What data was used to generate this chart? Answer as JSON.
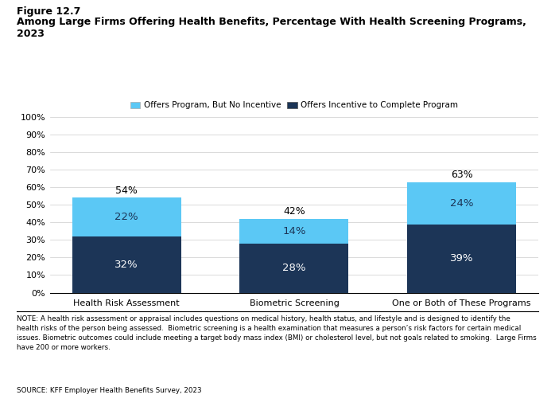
{
  "figure_label": "Figure 12.7",
  "title_line1": "Among Large Firms Offering Health Benefits, Percentage With Health Screening Programs,",
  "title_line2": "2023",
  "categories": [
    "Health Risk Assessment",
    "Biometric Screening",
    "One or Both of These Programs"
  ],
  "incentive_values": [
    32,
    28,
    39
  ],
  "no_incentive_values": [
    22,
    14,
    24
  ],
  "totals": [
    54,
    42,
    63
  ],
  "color_incentive": "#1c3557",
  "color_no_incentive": "#5bc8f5",
  "legend_labels": [
    "Offers Program, But No Incentive",
    "Offers Incentive to Complete Program"
  ],
  "ylim": [
    0,
    100
  ],
  "yticks": [
    0,
    10,
    20,
    30,
    40,
    50,
    60,
    70,
    80,
    90,
    100
  ],
  "note_text": "NOTE: A health risk assessment or appraisal includes questions on medical history, health status, and lifestyle and is designed to identify the\nhealth risks of the person being assessed.  Biometric screening is a health examination that measures a person’s risk factors for certain medical\nissues. Biometric outcomes could include meeting a target body mass index (BMI) or cholesterol level, but not goals related to smoking.  Large Firms\nhave 200 or more workers.",
  "source_text": "SOURCE: KFF Employer Health Benefits Survey, 2023",
  "bar_width": 0.65
}
